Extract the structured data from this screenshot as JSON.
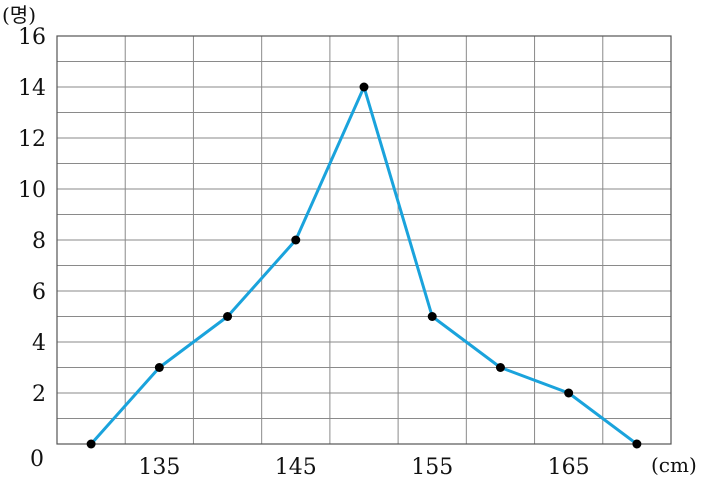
{
  "chart_data": {
    "type": "line",
    "title": "",
    "xlabel": "(cm)",
    "ylabel": "(명)",
    "x_tick_labels": [
      "135",
      "145",
      "155",
      "165"
    ],
    "x_tick_values": [
      135,
      145,
      155,
      165
    ],
    "y_tick_labels": [
      "0",
      "2",
      "4",
      "6",
      "8",
      "10",
      "12",
      "14",
      "16"
    ],
    "y_tick_values": [
      0,
      2,
      4,
      6,
      8,
      10,
      12,
      14,
      16
    ],
    "xlim": [
      127.5,
      172.5
    ],
    "ylim": [
      0,
      16
    ],
    "grid": true,
    "x_grid_step": 5,
    "y_grid_step": 1,
    "series": [
      {
        "x": [
          130,
          135,
          140,
          145,
          150,
          155,
          160,
          165,
          170
        ],
        "values": [
          0,
          3,
          5,
          8,
          14,
          5,
          3,
          2,
          0
        ],
        "color": "#1aa3dc",
        "marker_color": "#000000"
      }
    ]
  }
}
